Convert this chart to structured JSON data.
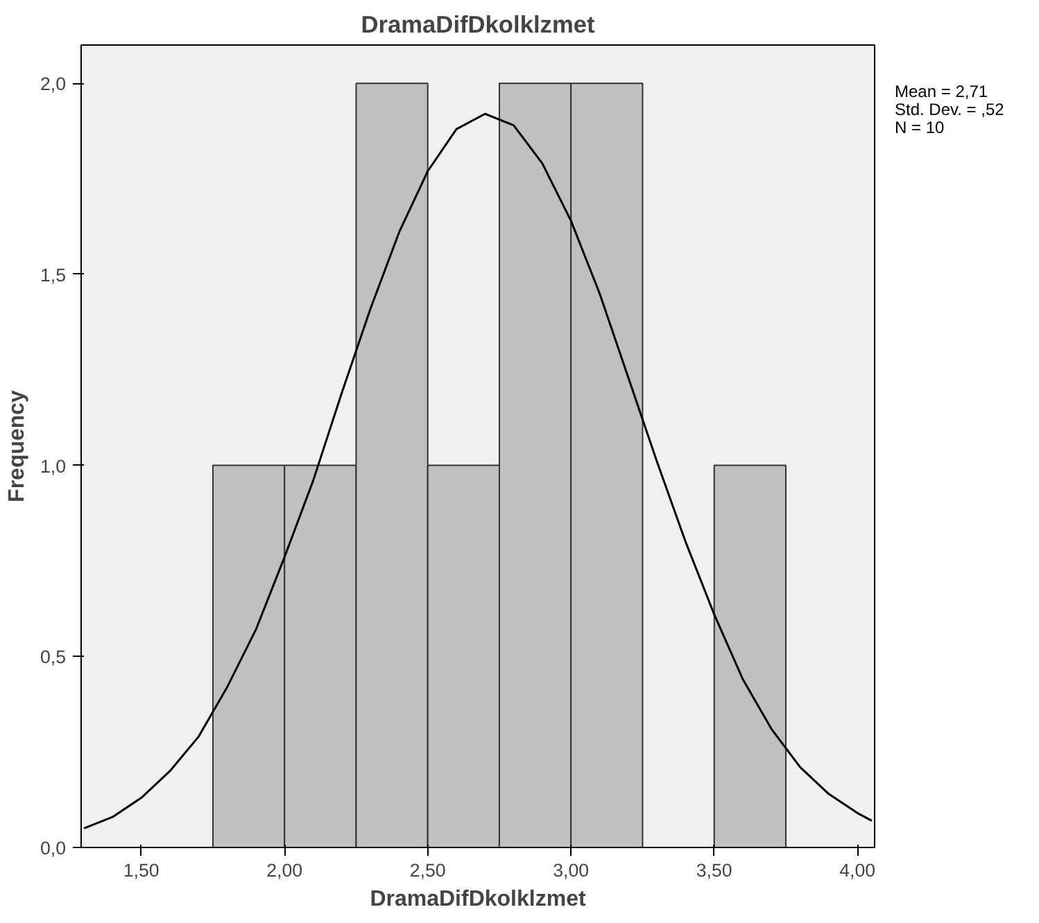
{
  "chart_data": {
    "type": "histogram",
    "title": "DramaDifDkolklzmet",
    "xlabel": "DramaDifDkolklzmet",
    "ylabel": "Frequency",
    "bins": [
      1.75,
      2.0,
      2.25,
      2.5,
      2.75,
      3.0,
      3.25,
      3.5,
      3.75
    ],
    "values": [
      1,
      1,
      2,
      1,
      2,
      2,
      0,
      1
    ],
    "color": "#c0c0c0",
    "series": [
      {
        "type": "line",
        "color": "#000000",
        "x": [
          1.3,
          1.4,
          1.5,
          1.6,
          1.7,
          1.8,
          1.9,
          2.0,
          2.1,
          2.2,
          2.3,
          2.4,
          2.5,
          2.6,
          2.7,
          2.8,
          2.9,
          3.0,
          3.1,
          3.2,
          3.3,
          3.4,
          3.5,
          3.6,
          3.7,
          3.8,
          3.9,
          4.0,
          4.05
        ],
        "values": [
          0.05,
          0.08,
          0.13,
          0.2,
          0.29,
          0.42,
          0.57,
          0.76,
          0.96,
          1.19,
          1.41,
          1.61,
          1.77,
          1.88,
          1.92,
          1.89,
          1.79,
          1.64,
          1.45,
          1.23,
          1.01,
          0.8,
          0.61,
          0.44,
          0.31,
          0.21,
          0.14,
          0.09,
          0.07
        ]
      }
    ],
    "xlim": [
      1.29,
      4.06
    ],
    "ylim": [
      0,
      2.1
    ],
    "xticks": [
      {
        "value": 1.5,
        "label": "1,50"
      },
      {
        "value": 2.0,
        "label": "2,00"
      },
      {
        "value": 2.5,
        "label": "2,50"
      },
      {
        "value": 3.0,
        "label": "3,00"
      },
      {
        "value": 3.5,
        "label": "3,50"
      },
      {
        "value": 4.0,
        "label": "4,00"
      }
    ],
    "yticks": [
      {
        "value": 0,
        "label": "0,0"
      },
      {
        "value": 0.5,
        "label": "0,5"
      },
      {
        "value": 1.0,
        "label": "1,0"
      },
      {
        "value": 1.5,
        "label": "1,5"
      },
      {
        "value": 2.0,
        "label": "2,0"
      }
    ],
    "annotations": [
      "Mean = 2,71",
      "Std. Dev. = ,52",
      "N = 10"
    ]
  }
}
